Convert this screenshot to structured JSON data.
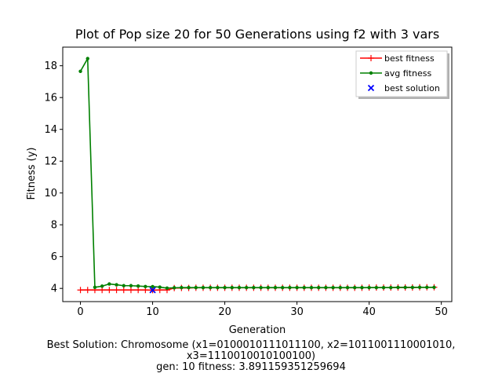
{
  "chart_data": {
    "type": "line",
    "title": "Plot of Pop size 20 for 50 Generations using f2 with 3 vars",
    "xlabel": "Generation",
    "ylabel": "Fitness (y)",
    "xlim": [
      -2.45,
      51.45
    ],
    "ylim": [
      3.17,
      19.17
    ],
    "xticks": [
      0,
      10,
      20,
      30,
      40,
      50
    ],
    "yticks": [
      4,
      6,
      8,
      10,
      12,
      14,
      16,
      18
    ],
    "grid": false,
    "legend_position": "top-right",
    "series": [
      {
        "name": "best fitness",
        "color": "#ff0000",
        "marker": "plus",
        "x": [
          0,
          1,
          2,
          3,
          4,
          5,
          6,
          7,
          8,
          9,
          10,
          11,
          12,
          13,
          14,
          15,
          16,
          17,
          18,
          19,
          20,
          21,
          22,
          23,
          24,
          25,
          26,
          27,
          28,
          29,
          30,
          31,
          32,
          33,
          34,
          35,
          36,
          37,
          38,
          39,
          40,
          41,
          42,
          43,
          44,
          45,
          46,
          47,
          48,
          49
        ],
        "values": [
          3.9,
          3.9,
          3.9,
          3.9,
          3.9,
          3.9,
          3.9,
          3.9,
          3.9,
          3.9,
          3.89,
          3.9,
          3.9,
          4.02,
          4.03,
          4.03,
          4.04,
          4.04,
          4.04,
          4.04,
          4.04,
          4.04,
          4.04,
          4.04,
          4.04,
          4.04,
          4.04,
          4.04,
          4.04,
          4.04,
          4.04,
          4.04,
          4.04,
          4.04,
          4.04,
          4.04,
          4.04,
          4.04,
          4.04,
          4.04,
          4.05,
          4.05,
          4.05,
          4.05,
          4.06,
          4.06,
          4.06,
          4.07,
          4.07,
          4.07
        ]
      },
      {
        "name": "avg fitness",
        "color": "#008000",
        "marker": "dot",
        "x": [
          0,
          1,
          2,
          3,
          4,
          5,
          6,
          7,
          8,
          9,
          10,
          11,
          12,
          13,
          14,
          15,
          16,
          17,
          18,
          19,
          20,
          21,
          22,
          23,
          24,
          25,
          26,
          27,
          28,
          29,
          30,
          31,
          32,
          33,
          34,
          35,
          36,
          37,
          38,
          39,
          40,
          41,
          42,
          43,
          44,
          45,
          46,
          47,
          48,
          49
        ],
        "values": [
          17.65,
          18.45,
          4.07,
          4.14,
          4.28,
          4.23,
          4.17,
          4.17,
          4.15,
          4.12,
          4.11,
          4.08,
          4.02,
          4.04,
          4.05,
          4.05,
          4.05,
          4.05,
          4.05,
          4.05,
          4.05,
          4.05,
          4.05,
          4.05,
          4.05,
          4.05,
          4.05,
          4.05,
          4.05,
          4.05,
          4.05,
          4.05,
          4.05,
          4.05,
          4.05,
          4.05,
          4.05,
          4.05,
          4.05,
          4.05,
          4.05,
          4.05,
          4.05,
          4.05,
          4.06,
          4.06,
          4.06,
          4.07,
          4.07,
          4.07
        ]
      },
      {
        "name": "best solution",
        "color": "#0000ff",
        "marker": "x",
        "x": [
          10
        ],
        "values": [
          3.891159351259694
        ]
      }
    ]
  },
  "caption": {
    "line1": "Best Solution: Chromosome (x1=0100010111011100, x2=1011001110001010,",
    "line2": "x3=1110010010100100)",
    "line3": "gen: 10 fitness: 3.891159351259694"
  }
}
